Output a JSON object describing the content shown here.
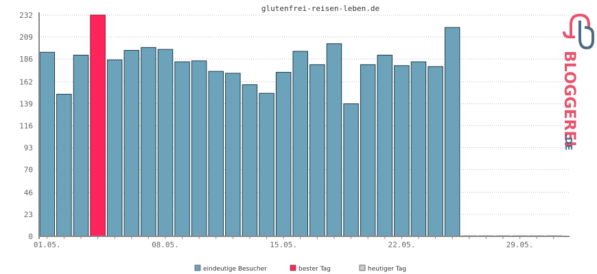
{
  "colors": {
    "bar": "#6da3ba",
    "bar_stroke": "#1e3c48",
    "best": "#ff2459",
    "today": "#cccccc",
    "grid": "#bbbbbb",
    "axis": "#888888",
    "brand_red": "#e8536d",
    "brand_blue": "#4a6a85"
  },
  "brand": {
    "logo_icon": "bloggerei-logo-icon",
    "name": "BLOGGEREI",
    "tld": ".DE"
  },
  "chart_data": {
    "type": "bar",
    "title": "glutenfrei-reisen-leben.de",
    "ylim": [
      0,
      232
    ],
    "yticks": [
      0,
      23,
      46,
      70,
      93,
      116,
      139,
      162,
      186,
      209,
      232
    ],
    "xtick_labels": [
      {
        "day": 1,
        "label": "01.05."
      },
      {
        "day": 8,
        "label": "08.05."
      },
      {
        "day": 15,
        "label": "15.05."
      },
      {
        "day": 22,
        "label": "22.05."
      },
      {
        "day": 29,
        "label": "29.05."
      }
    ],
    "days": [
      1,
      2,
      3,
      4,
      5,
      6,
      7,
      8,
      9,
      10,
      11,
      12,
      13,
      14,
      15,
      16,
      17,
      18,
      19,
      20,
      21,
      22,
      23,
      24,
      25,
      26,
      27,
      28,
      29,
      30,
      31
    ],
    "values": [
      193,
      149,
      190,
      232,
      185,
      195,
      198,
      196,
      183,
      184,
      173,
      171,
      159,
      150,
      172,
      194,
      180,
      202,
      139,
      180,
      190,
      179,
      183,
      178,
      219,
      1,
      1,
      1,
      1,
      1,
      1
    ],
    "best_day_index": 3,
    "today_day_index": 25,
    "grid": true,
    "legend_position": "bottom",
    "legend": [
      {
        "key": "visitors",
        "label": "eindeutige Besucher",
        "color": "#6da3ba"
      },
      {
        "key": "best",
        "label": "bester Tag",
        "color": "#ff2459"
      },
      {
        "key": "today",
        "label": "heutiger Tag",
        "color": "#cccccc"
      }
    ]
  }
}
